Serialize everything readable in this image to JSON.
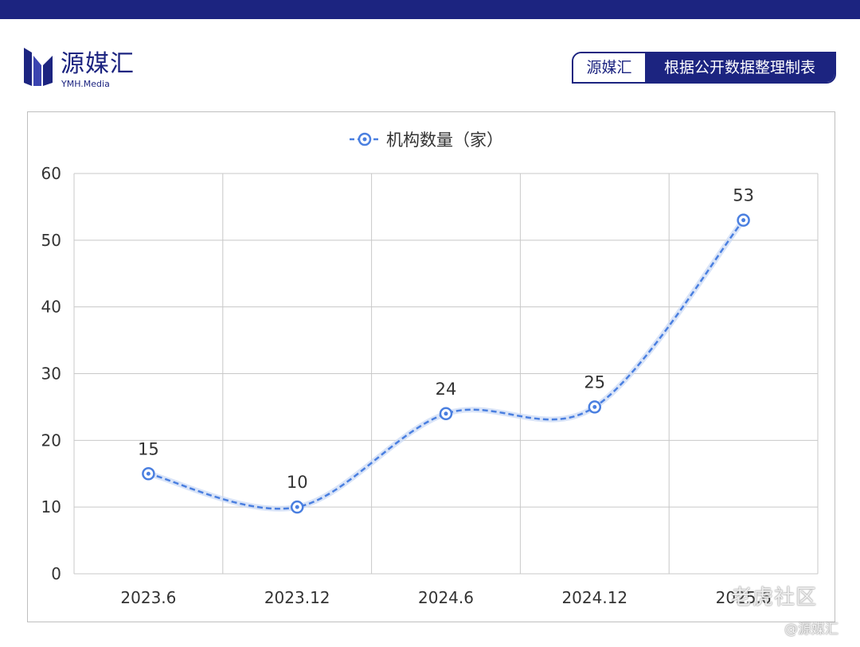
{
  "header": {
    "logo_cn": "源媒汇",
    "logo_en": "YMH.Media",
    "source_brand": "源媒汇",
    "source_note": "根据公开数据整理制表"
  },
  "colors": {
    "brand": "#1c2480",
    "series": "#4a7fe0",
    "grid": "#c8c8c8"
  },
  "chart_data": {
    "type": "line",
    "categories": [
      "2023.6",
      "2023.12",
      "2024.6",
      "2024.12",
      "2025.6"
    ],
    "series": [
      {
        "name": "机构数量（家）",
        "values": [
          15,
          10,
          24,
          25,
          53
        ]
      }
    ],
    "ylim": [
      0,
      60
    ],
    "yticks": [
      0,
      10,
      20,
      30,
      40,
      50,
      60
    ],
    "grid": true,
    "legend": "top-center",
    "line_style": "dashed-smooth",
    "marker": "circle"
  },
  "watermark": {
    "text": "老虎社区",
    "sub": "@源媒汇"
  }
}
